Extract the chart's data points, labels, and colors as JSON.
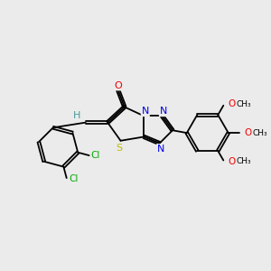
{
  "background_color": "#ebebeb",
  "bond_color": "#000000",
  "atom_colors": {
    "C": "#000000",
    "H": "#4a9a9a",
    "N": "#0000ee",
    "O": "#ee0000",
    "S": "#bbbb00",
    "Cl": "#00aa00"
  },
  "figsize": [
    3.0,
    3.0
  ],
  "dpi": 100,
  "xlim": [
    0,
    10
  ],
  "ylim": [
    0,
    10
  ]
}
